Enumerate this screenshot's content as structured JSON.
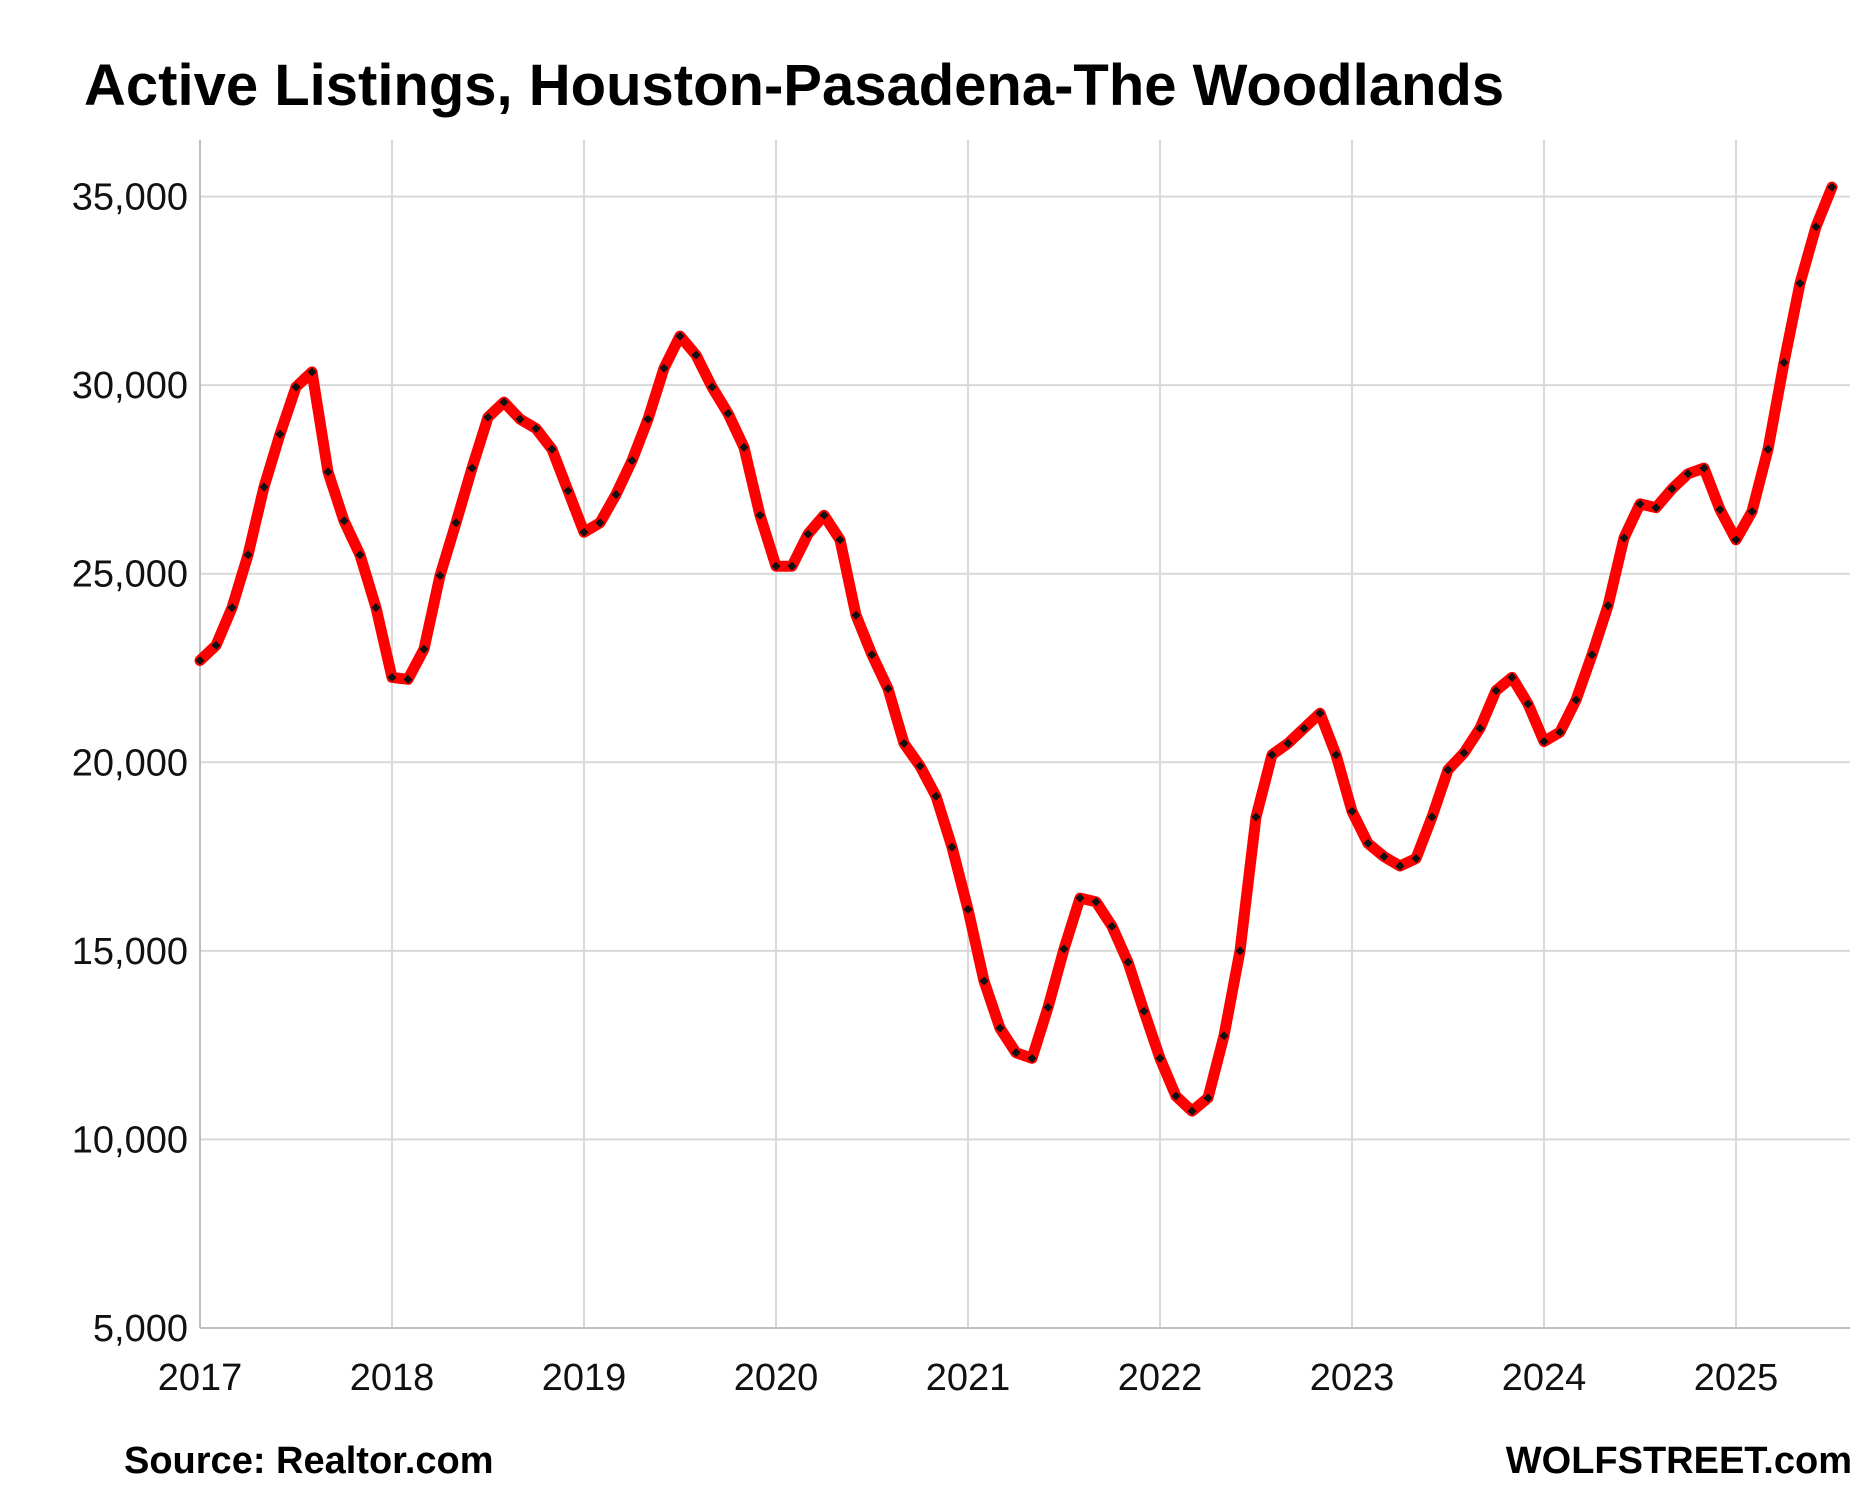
{
  "chart_data": {
    "type": "line",
    "title": "Active Listings, Houston-Pasadena-The Woodlands",
    "xlabel": "",
    "ylabel": "",
    "ylim": [
      5000,
      36500
    ],
    "xlim": [
      "2017-01",
      "2025-07"
    ],
    "grid": true,
    "y_ticks": [
      "5,000",
      "10,000",
      "15,000",
      "20,000",
      "25,000",
      "30,000",
      "35,000"
    ],
    "x_ticks": [
      "2017",
      "2018",
      "2019",
      "2020",
      "2021",
      "2022",
      "2023",
      "2024",
      "2025"
    ],
    "series": [
      {
        "line_color": "#ff0000",
        "marker_color": "#111111",
        "points": [
          {
            "x": "2017-01",
            "y": 22700
          },
          {
            "x": "2017-02",
            "y": 23100
          },
          {
            "x": "2017-03",
            "y": 24100
          },
          {
            "x": "2017-04",
            "y": 25500
          },
          {
            "x": "2017-05",
            "y": 27300
          },
          {
            "x": "2017-06",
            "y": 28700
          },
          {
            "x": "2017-07",
            "y": 29950
          },
          {
            "x": "2017-08",
            "y": 30350
          },
          {
            "x": "2017-09",
            "y": 27700
          },
          {
            "x": "2017-10",
            "y": 26400
          },
          {
            "x": "2017-11",
            "y": 25500
          },
          {
            "x": "2017-12",
            "y": 24100
          },
          {
            "x": "2018-01",
            "y": 22250
          },
          {
            "x": "2018-02",
            "y": 22200
          },
          {
            "x": "2018-03",
            "y": 23000
          },
          {
            "x": "2018-04",
            "y": 24950
          },
          {
            "x": "2018-05",
            "y": 26350
          },
          {
            "x": "2018-06",
            "y": 27800
          },
          {
            "x": "2018-07",
            "y": 29150
          },
          {
            "x": "2018-08",
            "y": 29550
          },
          {
            "x": "2018-09",
            "y": 29100
          },
          {
            "x": "2018-10",
            "y": 28850
          },
          {
            "x": "2018-11",
            "y": 28300
          },
          {
            "x": "2018-12",
            "y": 27200
          },
          {
            "x": "2019-01",
            "y": 26100
          },
          {
            "x": "2019-02",
            "y": 26350
          },
          {
            "x": "2019-03",
            "y": 27100
          },
          {
            "x": "2019-04",
            "y": 28000
          },
          {
            "x": "2019-05",
            "y": 29100
          },
          {
            "x": "2019-06",
            "y": 30450
          },
          {
            "x": "2019-07",
            "y": 31300
          },
          {
            "x": "2019-08",
            "y": 30800
          },
          {
            "x": "2019-09",
            "y": 29950
          },
          {
            "x": "2019-10",
            "y": 29250
          },
          {
            "x": "2019-11",
            "y": 28350
          },
          {
            "x": "2019-12",
            "y": 26550
          },
          {
            "x": "2020-01",
            "y": 25200
          },
          {
            "x": "2020-02",
            "y": 25200
          },
          {
            "x": "2020-03",
            "y": 26050
          },
          {
            "x": "2020-04",
            "y": 26550
          },
          {
            "x": "2020-05",
            "y": 25900
          },
          {
            "x": "2020-06",
            "y": 23900
          },
          {
            "x": "2020-07",
            "y": 22850
          },
          {
            "x": "2020-08",
            "y": 21950
          },
          {
            "x": "2020-09",
            "y": 20500
          },
          {
            "x": "2020-10",
            "y": 19900
          },
          {
            "x": "2020-11",
            "y": 19100
          },
          {
            "x": "2020-12",
            "y": 17750
          },
          {
            "x": "2021-01",
            "y": 16100
          },
          {
            "x": "2021-02",
            "y": 14200
          },
          {
            "x": "2021-03",
            "y": 12950
          },
          {
            "x": "2021-04",
            "y": 12300
          },
          {
            "x": "2021-05",
            "y": 12150
          },
          {
            "x": "2021-06",
            "y": 13500
          },
          {
            "x": "2021-07",
            "y": 15050
          },
          {
            "x": "2021-08",
            "y": 16400
          },
          {
            "x": "2021-09",
            "y": 16300
          },
          {
            "x": "2021-10",
            "y": 15650
          },
          {
            "x": "2021-11",
            "y": 14700
          },
          {
            "x": "2021-12",
            "y": 13400
          },
          {
            "x": "2022-01",
            "y": 12150
          },
          {
            "x": "2022-02",
            "y": 11150
          },
          {
            "x": "2022-03",
            "y": 10750
          },
          {
            "x": "2022-04",
            "y": 11100
          },
          {
            "x": "2022-05",
            "y": 12750
          },
          {
            "x": "2022-06",
            "y": 15000
          },
          {
            "x": "2022-07",
            "y": 18550
          },
          {
            "x": "2022-08",
            "y": 20200
          },
          {
            "x": "2022-09",
            "y": 20500
          },
          {
            "x": "2022-10",
            "y": 20900
          },
          {
            "x": "2022-11",
            "y": 21300
          },
          {
            "x": "2022-12",
            "y": 20200
          },
          {
            "x": "2023-01",
            "y": 18700
          },
          {
            "x": "2023-02",
            "y": 17850
          },
          {
            "x": "2023-03",
            "y": 17500
          },
          {
            "x": "2023-04",
            "y": 17250
          },
          {
            "x": "2023-05",
            "y": 17450
          },
          {
            "x": "2023-06",
            "y": 18550
          },
          {
            "x": "2023-07",
            "y": 19800
          },
          {
            "x": "2023-08",
            "y": 20250
          },
          {
            "x": "2023-09",
            "y": 20900
          },
          {
            "x": "2023-10",
            "y": 21900
          },
          {
            "x": "2023-11",
            "y": 22250
          },
          {
            "x": "2023-12",
            "y": 21550
          },
          {
            "x": "2024-01",
            "y": 20550
          },
          {
            "x": "2024-02",
            "y": 20800
          },
          {
            "x": "2024-03",
            "y": 21650
          },
          {
            "x": "2024-04",
            "y": 22850
          },
          {
            "x": "2024-05",
            "y": 24150
          },
          {
            "x": "2024-06",
            "y": 25950
          },
          {
            "x": "2024-07",
            "y": 26850
          },
          {
            "x": "2024-08",
            "y": 26750
          },
          {
            "x": "2024-09",
            "y": 27250
          },
          {
            "x": "2024-10",
            "y": 27650
          },
          {
            "x": "2024-11",
            "y": 27800
          },
          {
            "x": "2024-12",
            "y": 26700
          },
          {
            "x": "2025-01",
            "y": 25900
          },
          {
            "x": "2025-02",
            "y": 26650
          },
          {
            "x": "2025-03",
            "y": 28300
          },
          {
            "x": "2025-04",
            "y": 30600
          },
          {
            "x": "2025-05",
            "y": 32700
          },
          {
            "x": "2025-06",
            "y": 34200
          },
          {
            "x": "2025-07",
            "y": 35250
          }
        ]
      }
    ]
  },
  "footer": {
    "source": "Source: Realtor.com",
    "brand": "WOLFSTREET.com"
  }
}
